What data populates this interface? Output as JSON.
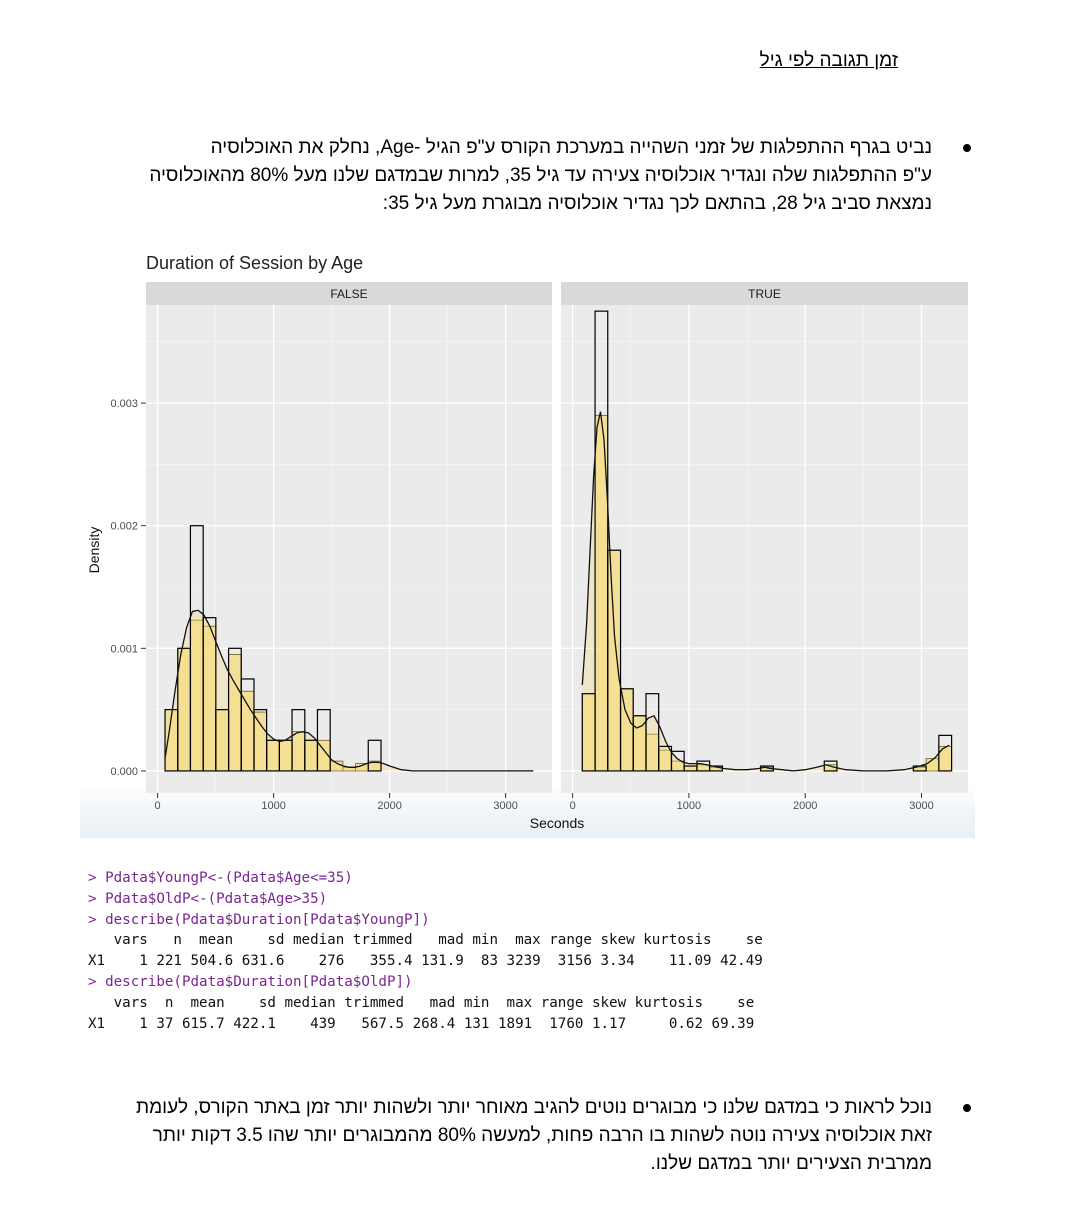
{
  "heading": "זמן תגובה לפי גיל",
  "paragraph1": [
    "נביט בגרף ההתפלגות של זמני השהייה במערכת הקורס ע\"פ הגיל -Age, נחלק את האוכלוסיה",
    "ע\"פ ההתפלגות שלה ונגדיר אוכלוסיה צעירה עד גיל 35, למרות שבמדגם שלנו מעל 80% מהאוכלוסיה",
    "נמצאת סביב גיל 28, בהתאם לכך נגדיר אוכלוסיה מבוגרת מעל גיל 35:"
  ],
  "chart_data": {
    "type": "histogram",
    "title": "Duration of Session by Age",
    "xlabel": "Seconds",
    "ylabel": "Density",
    "xlim": [
      -100,
      3400
    ],
    "ylim": [
      -0.00018,
      0.0038
    ],
    "x_ticks": [
      0,
      1000,
      2000,
      3000
    ],
    "x_tick_labels": [
      "0",
      "1000",
      "2000",
      "3000"
    ],
    "y_ticks": [
      0,
      0.001,
      0.002,
      0.003
    ],
    "y_tick_labels": [
      "0.000",
      "0.001",
      "0.002",
      "0.003"
    ],
    "grid": true,
    "density_fill_color": "#f5de8a",
    "panel_background": "#ebebeb",
    "strip_background": "#d9d9d9",
    "panels": [
      {
        "label": "FALSE",
        "outline_bins": [
          {
            "x0": 64,
            "x1": 174,
            "y": 0.0005
          },
          {
            "x0": 174,
            "x1": 283,
            "y": 0.001
          },
          {
            "x0": 283,
            "x1": 393,
            "y": 0.002
          },
          {
            "x0": 393,
            "x1": 502,
            "y": 0.00125
          },
          {
            "x0": 502,
            "x1": 612,
            "y": 0.0005
          },
          {
            "x0": 612,
            "x1": 721,
            "y": 0.001
          },
          {
            "x0": 721,
            "x1": 831,
            "y": 0.00075
          },
          {
            "x0": 831,
            "x1": 940,
            "y": 0.0005
          },
          {
            "x0": 940,
            "x1": 1050,
            "y": 0.00025
          },
          {
            "x0": 1050,
            "x1": 1159,
            "y": 0.00025
          },
          {
            "x0": 1159,
            "x1": 1269,
            "y": 0.0005
          },
          {
            "x0": 1269,
            "x1": 1378,
            "y": 0.00025
          },
          {
            "x0": 1378,
            "x1": 1488,
            "y": 0.0005
          },
          {
            "x0": 1488,
            "x1": 1597,
            "y": 0
          },
          {
            "x0": 1597,
            "x1": 1707,
            "y": 0
          },
          {
            "x0": 1707,
            "x1": 1816,
            "y": 0
          },
          {
            "x0": 1816,
            "x1": 1926,
            "y": 0.00025
          }
        ],
        "fill_bins": [
          {
            "x0": 64,
            "x1": 174,
            "y": 0.0005
          },
          {
            "x0": 174,
            "x1": 283,
            "y": 0.001
          },
          {
            "x0": 283,
            "x1": 393,
            "y": 0.00123
          },
          {
            "x0": 393,
            "x1": 502,
            "y": 0.00118
          },
          {
            "x0": 502,
            "x1": 612,
            "y": 0.0005
          },
          {
            "x0": 612,
            "x1": 721,
            "y": 0.00095
          },
          {
            "x0": 721,
            "x1": 831,
            "y": 0.00065
          },
          {
            "x0": 831,
            "x1": 940,
            "y": 0.00048
          },
          {
            "x0": 940,
            "x1": 1050,
            "y": 0.00025
          },
          {
            "x0": 1050,
            "x1": 1159,
            "y": 0.00025
          },
          {
            "x0": 1159,
            "x1": 1269,
            "y": 0.00032
          },
          {
            "x0": 1269,
            "x1": 1378,
            "y": 0.00025
          },
          {
            "x0": 1378,
            "x1": 1488,
            "y": 0.00025
          },
          {
            "x0": 1488,
            "x1": 1597,
            "y": 8e-05
          },
          {
            "x0": 1597,
            "x1": 1707,
            "y": 3e-05
          },
          {
            "x0": 1707,
            "x1": 1816,
            "y": 6e-05
          },
          {
            "x0": 1816,
            "x1": 1926,
            "y": 8e-05
          }
        ],
        "density": [
          [
            64,
            0.0001
          ],
          [
            100,
            0.00032
          ],
          [
            150,
            0.00065
          ],
          [
            200,
            0.00095
          ],
          [
            250,
            0.00117
          ],
          [
            300,
            0.0013
          ],
          [
            350,
            0.00131
          ],
          [
            400,
            0.00127
          ],
          [
            450,
            0.00118
          ],
          [
            500,
            0.00106
          ],
          [
            550,
            0.00094
          ],
          [
            600,
            0.00083
          ],
          [
            650,
            0.00074
          ],
          [
            700,
            0.00066
          ],
          [
            750,
            0.00058
          ],
          [
            800,
            0.0005
          ],
          [
            850,
            0.00043
          ],
          [
            900,
            0.00036
          ],
          [
            950,
            0.0003
          ],
          [
            1000,
            0.00026
          ],
          [
            1050,
            0.00024
          ],
          [
            1100,
            0.00025
          ],
          [
            1150,
            0.00028
          ],
          [
            1200,
            0.00031
          ],
          [
            1250,
            0.00032
          ],
          [
            1300,
            0.00031
          ],
          [
            1350,
            0.00027
          ],
          [
            1400,
            0.00021
          ],
          [
            1450,
            0.00015
          ],
          [
            1500,
            9e-05
          ],
          [
            1550,
            6e-05
          ],
          [
            1600,
            4e-05
          ],
          [
            1650,
            3e-05
          ],
          [
            1700,
            3e-05
          ],
          [
            1750,
            4e-05
          ],
          [
            1800,
            6e-05
          ],
          [
            1850,
            7e-05
          ],
          [
            1900,
            7e-05
          ],
          [
            1950,
            6e-05
          ],
          [
            2000,
            4e-05
          ],
          [
            2100,
            1e-05
          ],
          [
            2200,
            0
          ],
          [
            2500,
            0
          ],
          [
            2900,
            0
          ],
          [
            3239,
            0
          ]
        ]
      },
      {
        "label": "TRUE",
        "outline_bins": [
          {
            "x0": 83,
            "x1": 193,
            "y": 0.00063
          },
          {
            "x0": 193,
            "x1": 302,
            "y": 0.00375
          },
          {
            "x0": 302,
            "x1": 412,
            "y": 0.0018
          },
          {
            "x0": 412,
            "x1": 521,
            "y": 0.00067
          },
          {
            "x0": 521,
            "x1": 631,
            "y": 0.00045
          },
          {
            "x0": 631,
            "x1": 740,
            "y": 0.00063
          },
          {
            "x0": 740,
            "x1": 850,
            "y": 0.0002
          },
          {
            "x0": 850,
            "x1": 959,
            "y": 0.00016
          },
          {
            "x0": 959,
            "x1": 1069,
            "y": 4e-05
          },
          {
            "x0": 1069,
            "x1": 1178,
            "y": 8e-05
          },
          {
            "x0": 1178,
            "x1": 1288,
            "y": 4e-05
          },
          {
            "x0": 1288,
            "x1": 1397,
            "y": 0
          },
          {
            "x0": 1397,
            "x1": 1507,
            "y": 0
          },
          {
            "x0": 1507,
            "x1": 1616,
            "y": 0
          },
          {
            "x0": 1616,
            "x1": 1726,
            "y": 4e-05
          },
          {
            "x0": 1726,
            "x1": 1835,
            "y": 0
          },
          {
            "x0": 1835,
            "x1": 1945,
            "y": 0
          },
          {
            "x0": 1945,
            "x1": 2054,
            "y": 0
          },
          {
            "x0": 2054,
            "x1": 2164,
            "y": 0
          },
          {
            "x0": 2164,
            "x1": 2273,
            "y": 8e-05
          },
          {
            "x0": 2273,
            "x1": 2383,
            "y": 0
          },
          {
            "x0": 2383,
            "x1": 2492,
            "y": 0
          },
          {
            "x0": 2492,
            "x1": 2602,
            "y": 0
          },
          {
            "x0": 2602,
            "x1": 2711,
            "y": 0
          },
          {
            "x0": 2711,
            "x1": 2821,
            "y": 0
          },
          {
            "x0": 2821,
            "x1": 2930,
            "y": 0
          },
          {
            "x0": 2930,
            "x1": 3040,
            "y": 4e-05
          },
          {
            "x0": 3040,
            "x1": 3149,
            "y": 0
          },
          {
            "x0": 3149,
            "x1": 3259,
            "y": 0.00029
          }
        ],
        "fill_bins": [
          {
            "x0": 83,
            "x1": 193,
            "y": 0.00063
          },
          {
            "x0": 193,
            "x1": 302,
            "y": 0.0029
          },
          {
            "x0": 302,
            "x1": 412,
            "y": 0.0018
          },
          {
            "x0": 412,
            "x1": 521,
            "y": 0.00067
          },
          {
            "x0": 521,
            "x1": 631,
            "y": 0.00045
          },
          {
            "x0": 631,
            "x1": 740,
            "y": 0.0003
          },
          {
            "x0": 740,
            "x1": 850,
            "y": 0.00017
          },
          {
            "x0": 850,
            "x1": 959,
            "y": 8e-05
          },
          {
            "x0": 959,
            "x1": 1069,
            "y": 4e-05
          },
          {
            "x0": 1069,
            "x1": 1178,
            "y": 5e-05
          },
          {
            "x0": 1178,
            "x1": 1288,
            "y": 3e-05
          },
          {
            "x0": 1616,
            "x1": 1726,
            "y": 3e-05
          },
          {
            "x0": 2164,
            "x1": 2273,
            "y": 5e-05
          },
          {
            "x0": 2930,
            "x1": 3040,
            "y": 3e-05
          },
          {
            "x0": 3040,
            "x1": 3149,
            "y": 0.0001
          },
          {
            "x0": 3149,
            "x1": 3259,
            "y": 0.0002
          }
        ],
        "density": [
          [
            83,
            0.0007
          ],
          [
            120,
            0.0012
          ],
          [
            150,
            0.0018
          ],
          [
            180,
            0.0024
          ],
          [
            210,
            0.0028
          ],
          [
            240,
            0.00293
          ],
          [
            270,
            0.0027
          ],
          [
            300,
            0.0022
          ],
          [
            330,
            0.0016
          ],
          [
            360,
            0.0011
          ],
          [
            400,
            0.00075
          ],
          [
            450,
            0.0005
          ],
          [
            500,
            0.00039
          ],
          [
            550,
            0.00035
          ],
          [
            600,
            0.00037
          ],
          [
            650,
            0.00043
          ],
          [
            700,
            0.00045
          ],
          [
            750,
            0.00036
          ],
          [
            800,
            0.00024
          ],
          [
            850,
            0.00015
          ],
          [
            900,
            0.0001
          ],
          [
            950,
            7e-05
          ],
          [
            1000,
            6e-05
          ],
          [
            1050,
            6e-05
          ],
          [
            1100,
            6e-05
          ],
          [
            1150,
            5e-05
          ],
          [
            1200,
            4e-05
          ],
          [
            1300,
            2e-05
          ],
          [
            1400,
            1e-05
          ],
          [
            1500,
            1e-05
          ],
          [
            1600,
            2e-05
          ],
          [
            1650,
            3e-05
          ],
          [
            1700,
            2e-05
          ],
          [
            1800,
            1e-05
          ],
          [
            1900,
            0
          ],
          [
            2000,
            1e-05
          ],
          [
            2100,
            3e-05
          ],
          [
            2180,
            5e-05
          ],
          [
            2250,
            3e-05
          ],
          [
            2350,
            1e-05
          ],
          [
            2500,
            0
          ],
          [
            2700,
            0
          ],
          [
            2850,
            1e-05
          ],
          [
            2950,
            3e-05
          ],
          [
            3050,
            6e-05
          ],
          [
            3120,
            0.00011
          ],
          [
            3180,
            0.00018
          ],
          [
            3239,
            0.00021
          ]
        ]
      }
    ]
  },
  "console": [
    {
      "kind": "cmd",
      "text": "> Pdata$YoungP<-(Pdata$Age<=35)"
    },
    {
      "kind": "cmd",
      "text": "> Pdata$OldP<-(Pdata$Age>35)"
    },
    {
      "kind": "cmd",
      "text": "> describe(Pdata$Duration[Pdata$YoungP])"
    },
    {
      "kind": "out",
      "text": "   vars   n  mean    sd median trimmed   mad min  max range skew kurtosis    se"
    },
    {
      "kind": "out",
      "text": "X1    1 221 504.6 631.6    276   355.4 131.9  83 3239  3156 3.34    11.09 42.49"
    },
    {
      "kind": "cmd",
      "text": "> describe(Pdata$Duration[Pdata$OldP])"
    },
    {
      "kind": "out",
      "text": "   vars  n  mean    sd median trimmed   mad min  max range skew kurtosis    se"
    },
    {
      "kind": "out",
      "text": "X1    1 37 615.7 422.1    439   567.5 268.4 131 1891  1760 1.17     0.62 69.39"
    }
  ],
  "paragraph2": [
    "נוכל לראות כי במדגם שלנו כי מבוגרים נוטים להגיב מאוחר יותר ולשהות יותר זמן באתר הקורס, לעומת",
    "זאת אוכלוסיה צעירה נוטה לשהות בו הרבה פחות, למעשה 80% מהמבוגרים יותר שהו 3.5 דקות יותר",
    "ממרבית הצעירים יותר במדגם שלנו."
  ]
}
